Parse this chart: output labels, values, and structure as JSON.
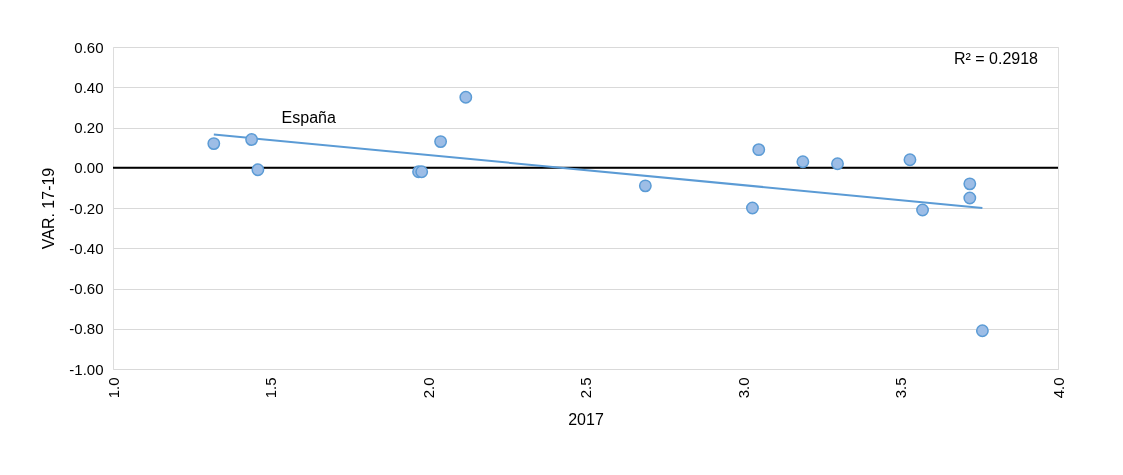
{
  "chart_data": {
    "type": "scatter",
    "xlabel": "2017",
    "ylabel": "VAR. 17-19",
    "xlim": [
      1,
      4
    ],
    "xticks": [
      {
        "value": 1,
        "label": "1.0"
      },
      {
        "value": 1.5,
        "label": "1.5"
      },
      {
        "value": 2,
        "label": "2.0"
      },
      {
        "value": 2.5,
        "label": "2.5"
      },
      {
        "value": 3,
        "label": "3.0"
      },
      {
        "value": 3.5,
        "label": "3.5"
      },
      {
        "value": 4,
        "label": "4.0"
      }
    ],
    "ylim": [
      -1,
      0.6
    ],
    "yticks": [
      {
        "value": -1,
        "label": "-1.00"
      },
      {
        "value": -0.8,
        "label": "-0.80"
      },
      {
        "value": -0.6,
        "label": "-0.60"
      },
      {
        "value": -0.4,
        "label": "-0.40"
      },
      {
        "value": -0.2,
        "label": "-0.20"
      },
      {
        "value": 0,
        "label": "0.00"
      },
      {
        "value": 0.2,
        "label": "0.20"
      },
      {
        "value": 0.4,
        "label": "0.40"
      },
      {
        "value": 0.6,
        "label": "0.60"
      }
    ],
    "grid": "y",
    "series": [
      {
        "type": "scatter",
        "marker": "circle",
        "color": "#9dbde6",
        "x": [
          1.32,
          1.44,
          1.46,
          1.97,
          1.98,
          2.04,
          2.12,
          2.69,
          3.03,
          3.05,
          3.19,
          3.3,
          3.53,
          3.57,
          3.72,
          3.72,
          3.76
        ],
        "values": [
          0.12,
          0.14,
          -0.01,
          -0.02,
          -0.02,
          0.13,
          0.35,
          -0.09,
          -0.2,
          0.09,
          0.03,
          0.02,
          0.04,
          -0.21,
          -0.08,
          -0.15,
          -0.81
        ]
      },
      {
        "type": "line",
        "color": "#5b9bd5",
        "x": [
          1.32,
          3.76
        ],
        "values": [
          0.165,
          -0.2
        ]
      }
    ],
    "ref_lines": [
      {
        "axis": "y",
        "value": 0,
        "color": "#000000"
      }
    ],
    "annotations": [
      {
        "text": "España",
        "x": 1.44,
        "y": 0.14
      },
      "R² = 0.2918"
    ]
  }
}
